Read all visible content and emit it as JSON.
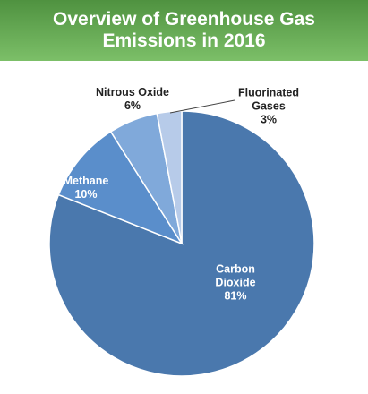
{
  "chart_data": {
    "type": "pie",
    "title": "Overview of Greenhouse Gas Emissions in 2016",
    "categories": [
      "Carbon Dioxide",
      "Methane",
      "Nitrous Oxide",
      "Fluorinated Gases"
    ],
    "values": [
      81,
      10,
      6,
      3
    ],
    "value_labels": [
      "81%",
      "10%",
      "6%",
      "3%"
    ],
    "colors": [
      "#4a78ad",
      "#5a8ecb",
      "#80a9da",
      "#b7cbe9"
    ]
  }
}
